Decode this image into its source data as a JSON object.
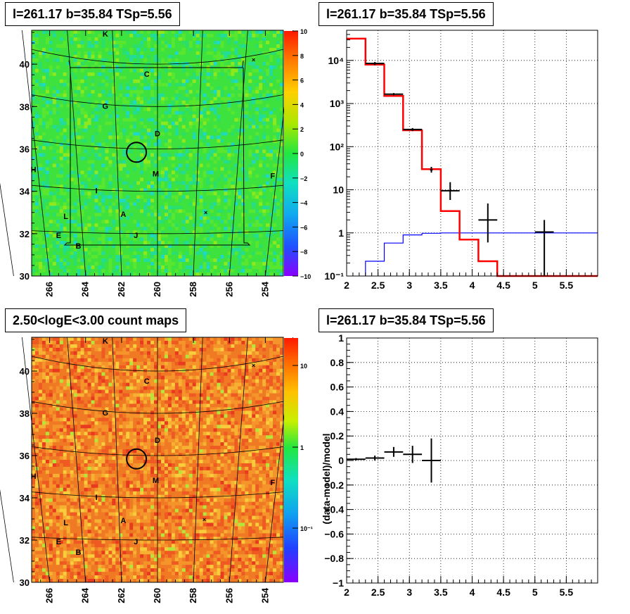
{
  "panels": {
    "top_left_title": "l=261.17 b=35.84 TSp=5.56",
    "top_right_title": "l=261.17 b=35.84 TSp=5.56",
    "bottom_left_title": "2.50<logE<3.00 count maps",
    "bottom_right_title": "l=261.17 b=35.84 TSp=5.56"
  },
  "colors": {
    "model_line": "#ff0000",
    "data_marker": "#000000",
    "background_model": "#0000ff",
    "map_green": "#3ee23e",
    "map_orange": "#f07a24"
  },
  "chart_data": [
    {
      "type": "heatmap",
      "name": "residual significance map",
      "x_ticks": [
        "266",
        "264",
        "262",
        "260",
        "258",
        "256",
        "254"
      ],
      "y_ticks": [
        "30",
        "32",
        "34",
        "36",
        "38",
        "40"
      ],
      "xlim": [
        267,
        253
      ],
      "ylim": [
        30,
        41.6
      ],
      "colorbar_ticks": [
        "10",
        "8",
        "6",
        "4",
        "2",
        "0",
        "−2",
        "−4",
        "−6",
        "−8",
        "−10"
      ],
      "colorbar_range": [
        -10,
        10
      ],
      "source_labels": [
        {
          "text": "K",
          "l": 262.9,
          "b": 41.3
        },
        {
          "text": "C",
          "l": 260.6,
          "b": 39.4
        },
        {
          "text": "G",
          "l": 262.9,
          "b": 37.9
        },
        {
          "text": "D",
          "l": 260.0,
          "b": 36.6
        },
        {
          "text": "H",
          "l": 266.9,
          "b": 34.9
        },
        {
          "text": "M",
          "l": 260.1,
          "b": 34.7
        },
        {
          "text": "F",
          "l": 253.6,
          "b": 34.6
        },
        {
          "text": "I",
          "l": 263.4,
          "b": 33.9
        },
        {
          "text": "L",
          "l": 265.1,
          "b": 32.7
        },
        {
          "text": "A",
          "l": 261.9,
          "b": 32.8
        },
        {
          "text": "J",
          "l": 261.2,
          "b": 31.8
        },
        {
          "text": "E",
          "l": 265.5,
          "b": 31.8
        },
        {
          "text": "B",
          "l": 264.4,
          "b": 31.3
        }
      ],
      "circle": {
        "l": 261.17,
        "b": 35.84
      }
    },
    {
      "type": "line",
      "name": "count spectrum",
      "ylog": true,
      "x_ticks": [
        "2",
        "2.5",
        "3",
        "3.5",
        "4",
        "4.5",
        "5",
        "5.5"
      ],
      "y_ticks": [
        "10⁻¹",
        "1",
        "10",
        "10²",
        "10³",
        "10⁴"
      ],
      "xlim": [
        2.0,
        6.0
      ],
      "ylim": [
        0.1,
        50000
      ],
      "model_steps": {
        "edges": [
          2.0,
          2.3,
          2.6,
          2.9,
          3.2,
          3.5,
          3.8,
          4.1,
          4.4,
          6.0
        ],
        "values": [
          32000,
          8000,
          1500,
          240,
          30,
          3.2,
          0.7,
          0.22,
          0.1
        ]
      },
      "background_steps": {
        "edges": [
          2.3,
          2.6,
          2.9,
          3.2,
          3.5,
          6.0
        ],
        "values": [
          0.22,
          0.58,
          0.9,
          0.98,
          1.0
        ]
      },
      "data_points": [
        {
          "x": 2.45,
          "y": 8500,
          "xerr": 0.15,
          "ylo": 7800,
          "yhi": 9200
        },
        {
          "x": 2.75,
          "y": 1650,
          "xerr": 0.15,
          "ylo": 1550,
          "yhi": 1750
        },
        {
          "x": 3.05,
          "y": 250,
          "xerr": 0.15,
          "ylo": 230,
          "yhi": 270
        },
        {
          "x": 3.35,
          "y": 29,
          "xerr": 0.02,
          "ylo": 25,
          "yhi": 34
        },
        {
          "x": 3.65,
          "y": 9.5,
          "xerr": 0.15,
          "ylo": 5.8,
          "yhi": 15
        },
        {
          "x": 4.25,
          "y": 2.0,
          "xerr": 0.15,
          "ylo": 0.6,
          "yhi": 4.8
        },
        {
          "x": 5.15,
          "y": 1.05,
          "xerr": 0.15,
          "ylo": 0.1,
          "yhi": 2.0
        }
      ]
    },
    {
      "type": "heatmap",
      "name": "count map",
      "title": "2.50<logE<3.00 count maps",
      "x_ticks": [
        "266",
        "264",
        "262",
        "260",
        "258",
        "256",
        "254"
      ],
      "y_ticks": [
        "30",
        "32",
        "34",
        "36",
        "38",
        "40"
      ],
      "xlim": [
        267,
        253
      ],
      "ylim": [
        30,
        41.6
      ],
      "colorbar_ticks": [
        "10",
        "1",
        "10⁻¹"
      ],
      "colorbar_log": true,
      "source_labels": [
        {
          "text": "K",
          "l": 262.9,
          "b": 41.3
        },
        {
          "text": "C",
          "l": 260.6,
          "b": 39.4
        },
        {
          "text": "G",
          "l": 262.9,
          "b": 37.9
        },
        {
          "text": "D",
          "l": 260.0,
          "b": 36.6
        },
        {
          "text": "H",
          "l": 266.9,
          "b": 34.9
        },
        {
          "text": "M",
          "l": 260.1,
          "b": 34.7
        },
        {
          "text": "F",
          "l": 253.6,
          "b": 34.6
        },
        {
          "text": "I",
          "l": 263.4,
          "b": 33.9
        },
        {
          "text": "L",
          "l": 265.1,
          "b": 32.7
        },
        {
          "text": "A",
          "l": 261.9,
          "b": 32.8
        },
        {
          "text": "J",
          "l": 261.2,
          "b": 31.8
        },
        {
          "text": "E",
          "l": 265.5,
          "b": 31.8
        },
        {
          "text": "B",
          "l": 264.4,
          "b": 31.3
        }
      ],
      "circle": {
        "l": 261.17,
        "b": 35.84
      }
    },
    {
      "type": "scatter",
      "name": "fractional residuals",
      "ylabel": "(data-model)/model",
      "x_ticks": [
        "2",
        "2.5",
        "3",
        "3.5",
        "4",
        "4.5",
        "5",
        "5.5"
      ],
      "y_ticks": [
        "−1",
        "−0.8",
        "−0.6",
        "−0.4",
        "−0.2",
        "0",
        "0.2",
        "0.4",
        "0.6",
        "0.8",
        "1"
      ],
      "xlim": [
        2.0,
        6.0
      ],
      "ylim": [
        -1.0,
        1.0
      ],
      "data_points": [
        {
          "x": 2.15,
          "y": 0.01,
          "xerr": 0.15,
          "ylo": 0.0,
          "yhi": 0.02
        },
        {
          "x": 2.45,
          "y": 0.02,
          "xerr": 0.15,
          "ylo": 0.0,
          "yhi": 0.04
        },
        {
          "x": 2.75,
          "y": 0.07,
          "xerr": 0.15,
          "ylo": 0.03,
          "yhi": 0.11
        },
        {
          "x": 3.05,
          "y": 0.05,
          "xerr": 0.15,
          "ylo": -0.02,
          "yhi": 0.12
        },
        {
          "x": 3.35,
          "y": 0.0,
          "xerr": 0.15,
          "ylo": -0.18,
          "yhi": 0.18
        }
      ]
    }
  ]
}
